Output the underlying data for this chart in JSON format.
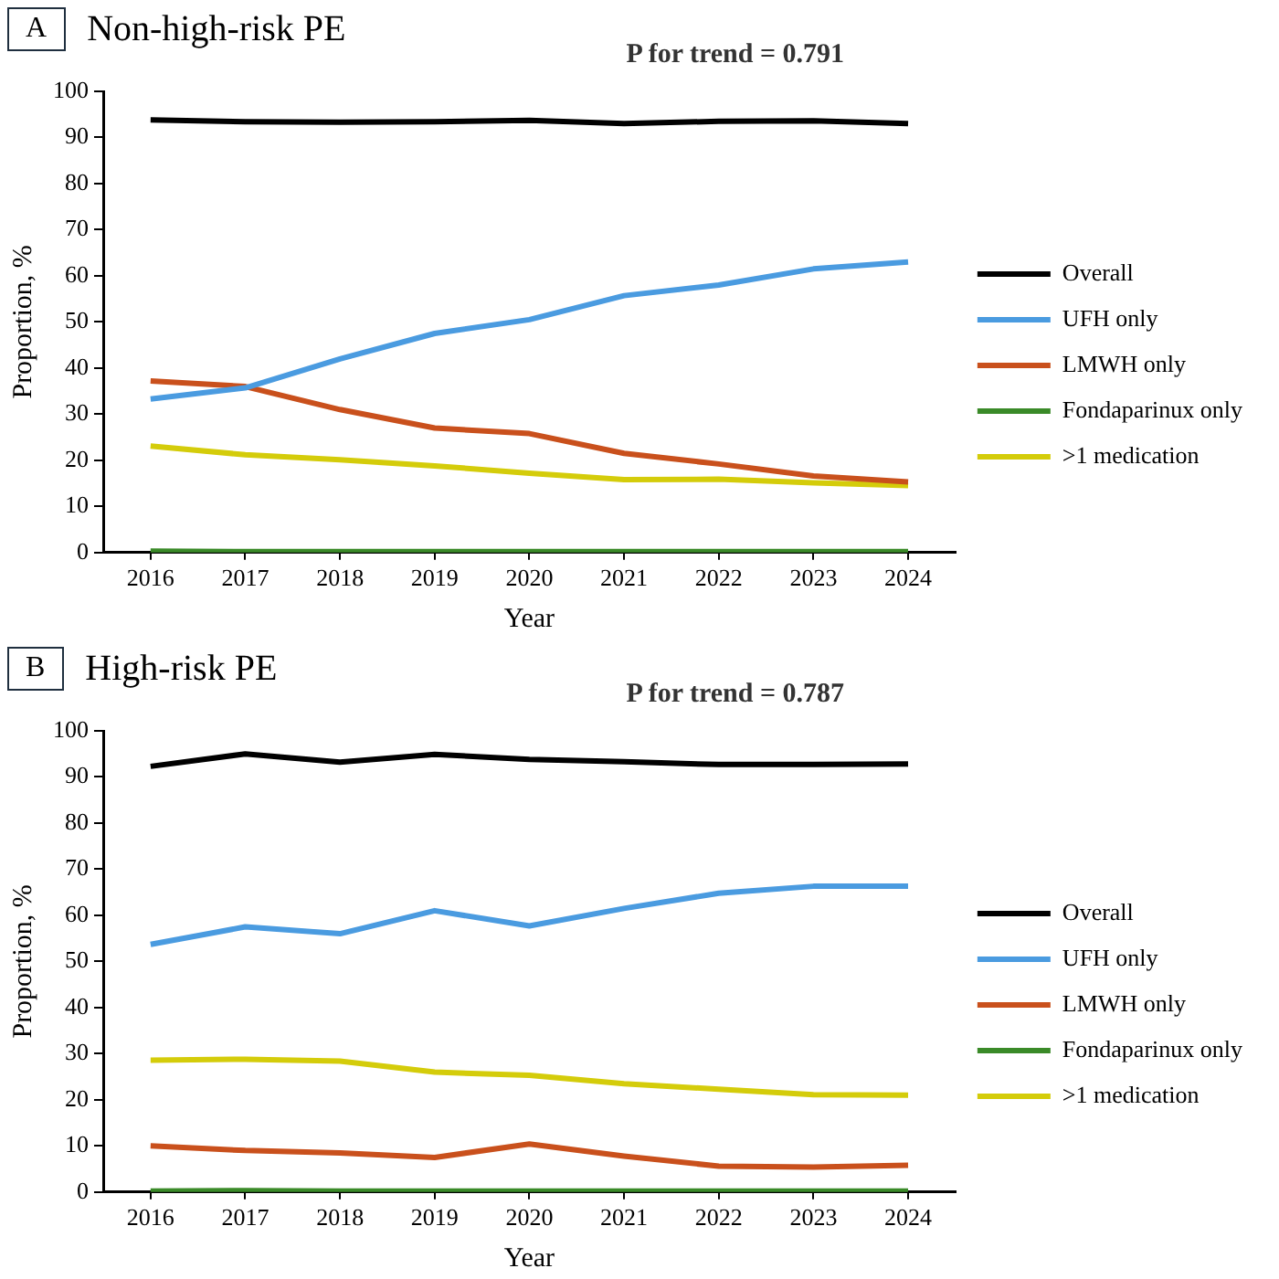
{
  "chart_data": [
    {
      "type": "line",
      "title": "Non-high-risk PE",
      "xlabel": "Year",
      "ylabel": "Proportion, %",
      "annotations": [
        "A",
        "P for trend = 0.791"
      ],
      "categories": [
        "2016",
        "2017",
        "2018",
        "2019",
        "2020",
        "2021",
        "2022",
        "2023",
        "2024"
      ],
      "series": [
        {
          "name": "Overall",
          "color": "#000000",
          "values": [
            93.8,
            93.4,
            93.3,
            93.4,
            93.7,
            93.0,
            93.5,
            93.6,
            93.0
          ]
        },
        {
          "name": "UFH only",
          "color": "#4a9be0",
          "values": [
            33.3,
            35.7,
            42.0,
            47.5,
            50.5,
            55.7,
            58.0,
            61.5,
            63.0
          ]
        },
        {
          "name": "LMWH only",
          "color": "#c9501c",
          "values": [
            37.2,
            36.0,
            31.0,
            27.0,
            25.8,
            21.5,
            19.2,
            16.6,
            15.3
          ]
        },
        {
          "name": "Fondaparinux only",
          "color": "#3a8a28",
          "values": [
            0.3,
            0.2,
            0.2,
            0.2,
            0.2,
            0.2,
            0.2,
            0.2,
            0.2
          ]
        },
        {
          "name": ">1 medication",
          "color": "#d4cc0a",
          "values": [
            23.1,
            21.2,
            20.1,
            18.8,
            17.2,
            15.8,
            15.9,
            15.1,
            14.5
          ]
        }
      ],
      "ylim": [
        0,
        100
      ],
      "yticks": [
        0,
        10,
        20,
        30,
        40,
        50,
        60,
        70,
        80,
        90,
        100
      ],
      "grid": false,
      "legend": "right",
      "marker": "none",
      "line_style": "solid"
    },
    {
      "type": "line",
      "title": "High-risk PE",
      "xlabel": "Year",
      "ylabel": "Proportion, %",
      "annotations": [
        "B",
        "P for trend = 0.787"
      ],
      "categories": [
        "2016",
        "2017",
        "2018",
        "2019",
        "2020",
        "2021",
        "2022",
        "2023",
        "2024"
      ],
      "series": [
        {
          "name": "Overall",
          "color": "#000000",
          "values": [
            92.3,
            95.0,
            93.2,
            94.9,
            93.8,
            93.3,
            92.7,
            92.7,
            92.8
          ]
        },
        {
          "name": "UFH only",
          "color": "#4a9be0",
          "values": [
            53.7,
            57.5,
            56.0,
            61.0,
            57.7,
            61.5,
            64.8,
            66.3,
            66.3
          ]
        },
        {
          "name": "LMWH only",
          "color": "#c9501c",
          "values": [
            10.0,
            9.0,
            8.5,
            7.5,
            10.4,
            7.8,
            5.6,
            5.4,
            5.8
          ]
        },
        {
          "name": "Fondaparinux only",
          "color": "#3a8a28",
          "values": [
            0.2,
            0.3,
            0.2,
            0.2,
            0.2,
            0.2,
            0.2,
            0.2,
            0.2
          ]
        },
        {
          "name": ">1 medication",
          "color": "#d4cc0a",
          "values": [
            28.6,
            28.8,
            28.4,
            26.0,
            25.3,
            23.5,
            22.3,
            21.1,
            21.0
          ]
        }
      ],
      "ylim": [
        0,
        100
      ],
      "yticks": [
        0,
        10,
        20,
        30,
        40,
        50,
        60,
        70,
        80,
        90,
        100
      ],
      "grid": false,
      "legend": "right",
      "marker": "none",
      "line_style": "solid"
    }
  ]
}
